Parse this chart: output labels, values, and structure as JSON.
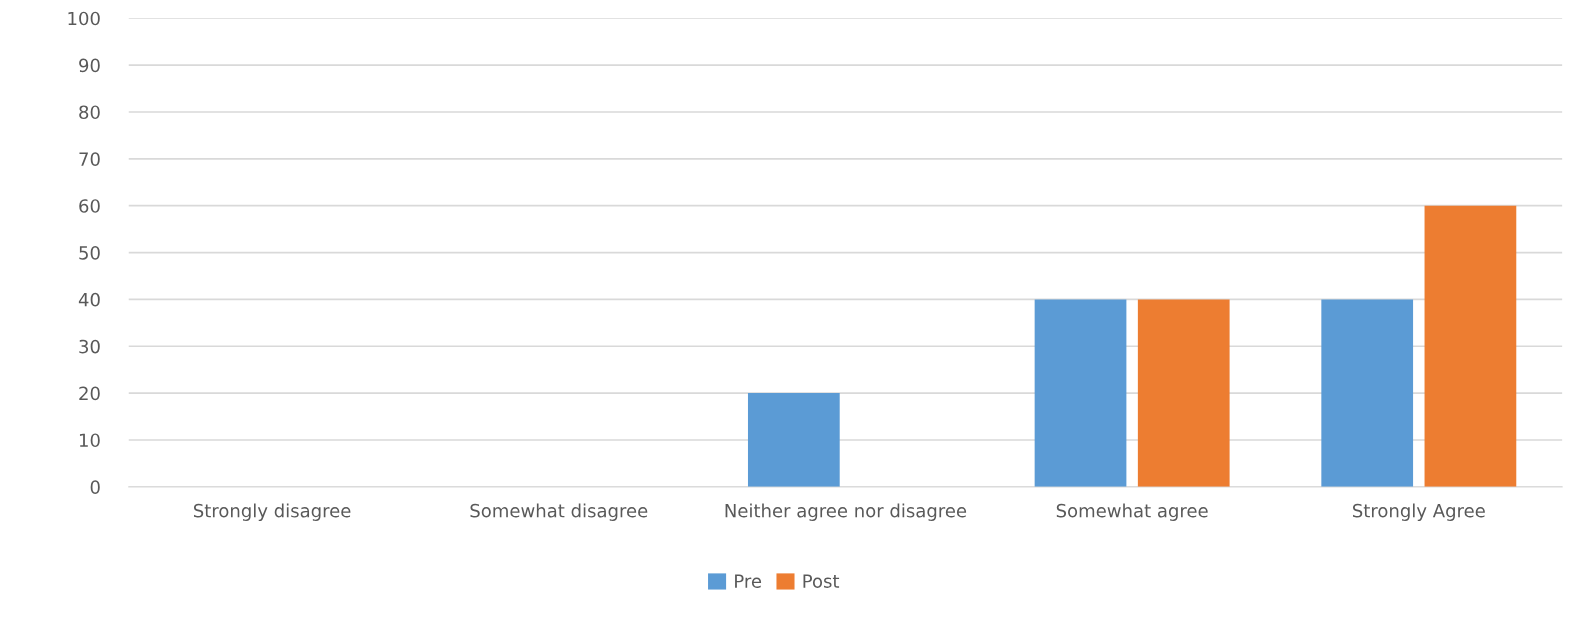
{
  "chart_data": {
    "type": "bar",
    "categories": [
      "Strongly disagree",
      "Somewhat disagree",
      "Neither agree nor disagree",
      "Somewhat agree",
      "Strongly Agree"
    ],
    "series": [
      {
        "name": "Pre",
        "color": "#5b9bd5",
        "values": [
          0,
          0,
          20,
          40,
          40
        ]
      },
      {
        "name": "Post",
        "color": "#ed7d31",
        "values": [
          0,
          0,
          0,
          40,
          60
        ]
      }
    ],
    "ylim": [
      0,
      100
    ],
    "yticks": [
      0,
      10,
      20,
      30,
      40,
      50,
      60,
      70,
      80,
      90,
      100
    ],
    "grid": "y",
    "legend": "bottom"
  }
}
